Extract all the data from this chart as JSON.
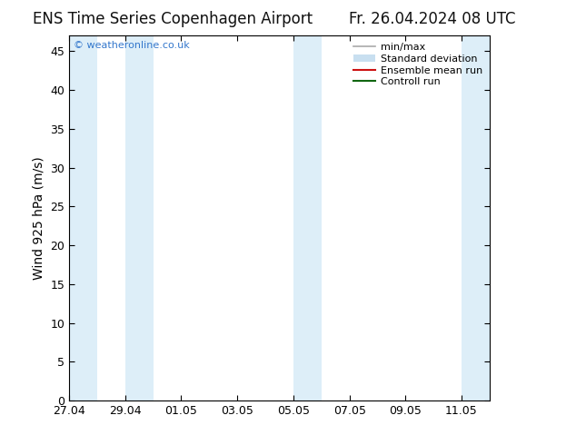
{
  "title_left": "ENS Time Series Copenhagen Airport",
  "title_right": "Fr. 26.04.2024 08 UTC",
  "ylabel": "Wind 925 hPa (m/s)",
  "ylim": [
    0,
    47
  ],
  "yticks": [
    0,
    5,
    10,
    15,
    20,
    25,
    30,
    35,
    40,
    45
  ],
  "bg_color": "#ffffff",
  "plot_bg_color": "#ffffff",
  "shaded_band_color": "#ddeef8",
  "watermark_text": "© weatheronline.co.uk",
  "watermark_color": "#3377cc",
  "legend_entries": [
    {
      "label": "min/max",
      "color": "#aaaaaa",
      "lw": 1.2,
      "type": "line"
    },
    {
      "label": "Standard deviation",
      "color": "#c8dff0",
      "lw": 8,
      "type": "patch"
    },
    {
      "label": "Ensemble mean run",
      "color": "#cc1111",
      "lw": 1.5,
      "type": "line"
    },
    {
      "label": "Controll run",
      "color": "#116611",
      "lw": 1.5,
      "type": "line"
    }
  ],
  "shaded_bands": [
    [
      0.0,
      1.0
    ],
    [
      2.0,
      3.0
    ],
    [
      8.0,
      9.0
    ],
    [
      14.0,
      15.0
    ]
  ],
  "x_tick_labels": [
    "27.04",
    "29.04",
    "01.05",
    "03.05",
    "05.05",
    "07.05",
    "09.05",
    "11.05"
  ],
  "x_tick_positions": [
    0,
    2,
    4,
    6,
    8,
    10,
    12,
    14
  ],
  "xlim": [
    0,
    15
  ],
  "title_fontsize": 12,
  "tick_fontsize": 9,
  "label_fontsize": 10,
  "legend_fontsize": 8
}
